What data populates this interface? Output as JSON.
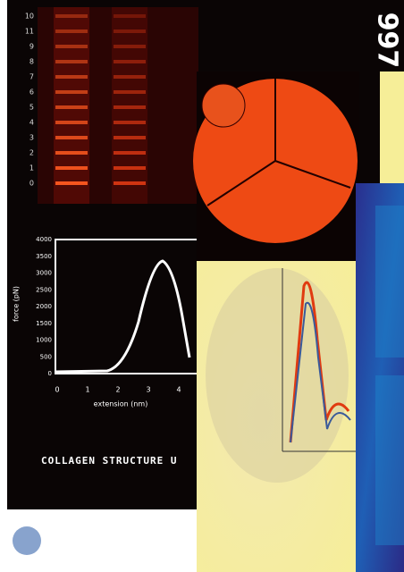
{
  "cover_left": {
    "year": "997",
    "caption": "COLLAGEN STRUCTURE U",
    "gel_labels": [
      "10",
      "11",
      "9",
      "8",
      "7",
      "6",
      "5",
      "4",
      "3",
      "2",
      "1",
      "0"
    ],
    "plot": {
      "y_label": "force (pN)",
      "x_label": "extension (nm)",
      "yticks": [
        "4000",
        "3500",
        "3000",
        "2500",
        "2000",
        "1500",
        "1000",
        "500",
        "0"
      ],
      "xticks": [
        "0",
        "1",
        "2",
        "3",
        "4"
      ]
    }
  }
}
